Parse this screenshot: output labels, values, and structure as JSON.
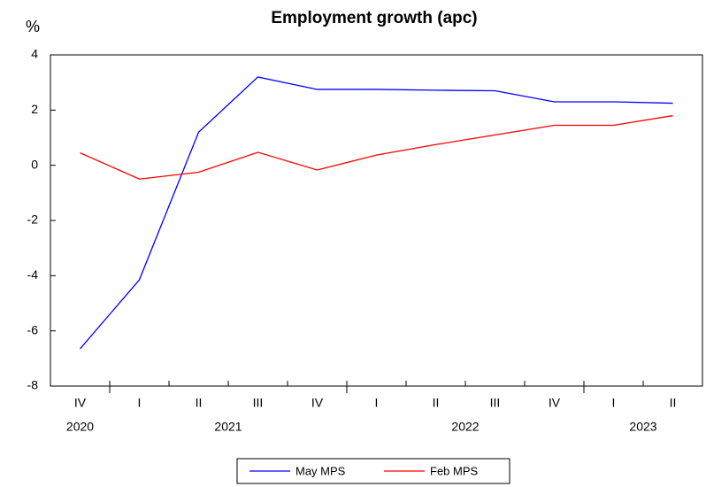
{
  "chart_data": {
    "type": "line",
    "title": "Employment growth (apc)",
    "y_label": "%",
    "categories": [
      "IV",
      "I",
      "II",
      "III",
      "IV",
      "I",
      "II",
      "III",
      "IV",
      "I",
      "II"
    ],
    "year_groups": [
      {
        "name": "2020",
        "count": 1
      },
      {
        "name": "2021",
        "count": 4
      },
      {
        "name": "2022",
        "count": 4
      },
      {
        "name": "2023",
        "count": 2
      }
    ],
    "series": [
      {
        "name": "May MPS",
        "color": "#0000ff",
        "values": [
          -6.65,
          -4.15,
          1.2,
          3.2,
          2.75,
          2.75,
          2.72,
          2.7,
          2.3,
          2.3,
          2.25
        ]
      },
      {
        "name": "Feb MPS",
        "color": "#ff0000",
        "values": [
          0.45,
          -0.5,
          -0.25,
          0.47,
          -0.17,
          0.37,
          0.75,
          1.1,
          1.45,
          1.45,
          1.8
        ]
      }
    ],
    "ylim": [
      -8,
      4
    ],
    "yticks": [
      -8,
      -6,
      -4,
      -2,
      0,
      2,
      4
    ],
    "legend": "bottom"
  }
}
